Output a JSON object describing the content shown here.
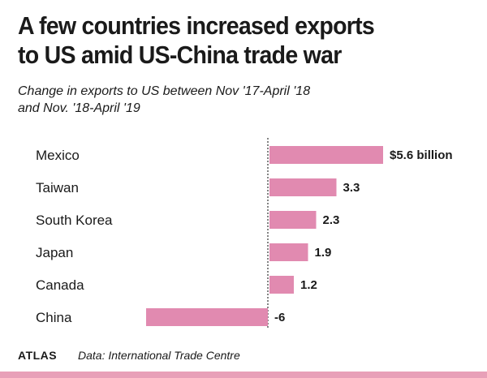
{
  "title_lines": [
    "A few countries increased exports",
    "to US amid US-China trade war"
  ],
  "subtitle_lines": [
    "Change in exports to US between Nov  '17-April '18",
    "and Nov. '18-April '19"
  ],
  "footer": {
    "brand": "ATLAS",
    "source": "Data: International Trade Centre"
  },
  "colors": {
    "bar": "#e18ab0",
    "text": "#1a1a1a",
    "accent_rule": "#e8a0b8"
  },
  "chart_data": {
    "type": "bar",
    "orientation": "horizontal",
    "categories": [
      "Mexico",
      "Taiwan",
      "South Korea",
      "Japan",
      "Canada",
      "China"
    ],
    "values": [
      5.6,
      3.3,
      2.3,
      1.9,
      1.2,
      -6
    ],
    "value_labels": [
      "$5.6 billion",
      "3.3",
      "2.3",
      "1.9",
      "1.2",
      "-6"
    ],
    "xlim": [
      -6,
      5.6
    ],
    "grid": false,
    "legend": "none"
  }
}
